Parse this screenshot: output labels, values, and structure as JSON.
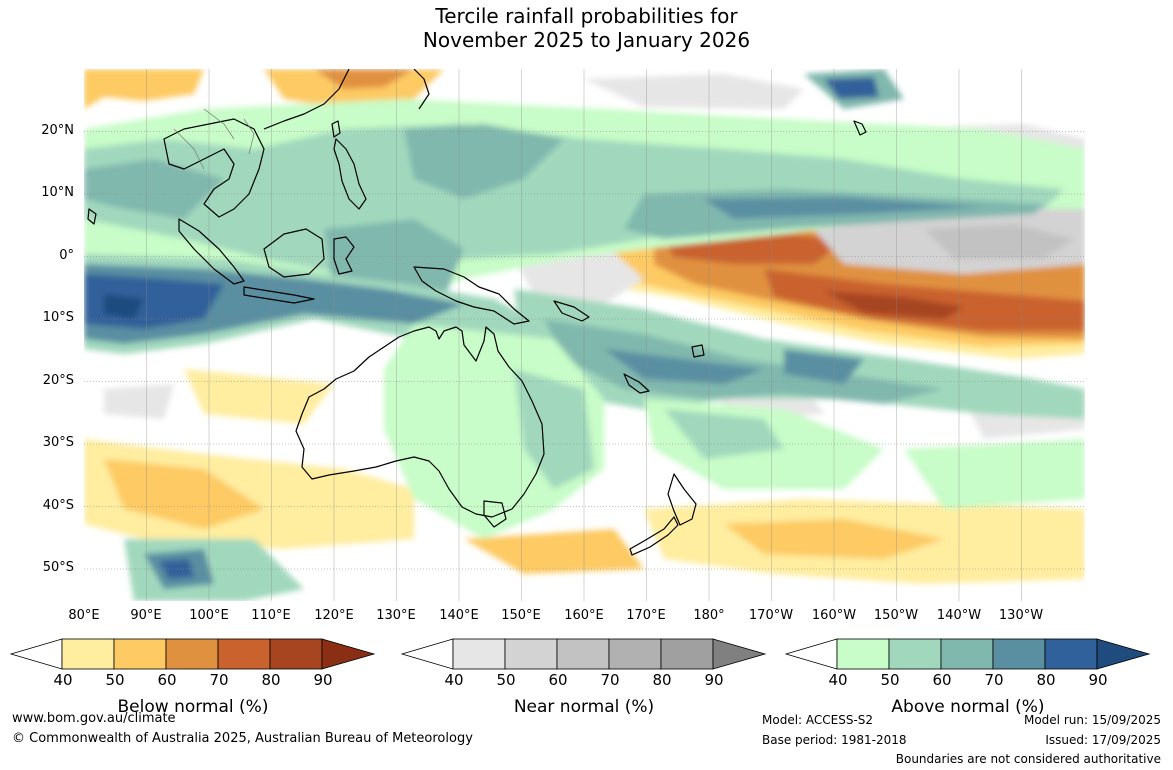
{
  "title": {
    "line1": "Tercile rainfall probabilities for",
    "line2": "November 2025 to January 2026"
  },
  "map": {
    "region": "Australia and Pacific",
    "lat_labels": [
      "20°N",
      "10°N",
      "0°",
      "10°S",
      "20°S",
      "30°S",
      "40°S",
      "50°S"
    ],
    "lon_labels": [
      "80°E",
      "90°E",
      "100°E",
      "110°E",
      "120°E",
      "130°E",
      "140°E",
      "150°E",
      "160°E",
      "170°E",
      "180°",
      "170°W",
      "160°W",
      "150°W",
      "140°W",
      "130°W"
    ],
    "blob_icons": [
      "below-normal-shading",
      "near-normal-shading",
      "above-normal-shading"
    ]
  },
  "colorbars": [
    {
      "name": "below",
      "title": "Below normal (%)",
      "ticks": [
        "40",
        "50",
        "60",
        "70",
        "80",
        "90"
      ],
      "colors": [
        "#ffffff",
        "#ffeda0",
        "#fdca63",
        "#e0913f",
        "#c9622d",
        "#a64520",
        "#8a2e14"
      ]
    },
    {
      "name": "near",
      "title": "Near normal (%)",
      "ticks": [
        "40",
        "50",
        "60",
        "70",
        "80",
        "90"
      ],
      "colors": [
        "#ffffff",
        "#e6e6e6",
        "#d3d3d3",
        "#c2c2c2",
        "#b1b1b1",
        "#a0a0a0",
        "#808080"
      ]
    },
    {
      "name": "above",
      "title": "Above normal (%)",
      "ticks": [
        "40",
        "50",
        "60",
        "70",
        "80",
        "90"
      ],
      "colors": [
        "#ffffff",
        "#c8fcc8",
        "#a1d8bd",
        "#81b8ad",
        "#5a8fa2",
        "#31619a",
        "#1f4b7e"
      ]
    }
  ],
  "footer": {
    "url": "www.bom.gov.au/climate",
    "copyright": "© Commonwealth of Australia 2025, Australian Bureau of Meteorology",
    "model": "Model: ACCESS-S2",
    "base_period": "Base period: 1981-2018",
    "model_run": "Model run: 15/09/2025",
    "issued": "Issued: 17/09/2025",
    "disclaimer": "Boundaries are not considered authoritative"
  }
}
